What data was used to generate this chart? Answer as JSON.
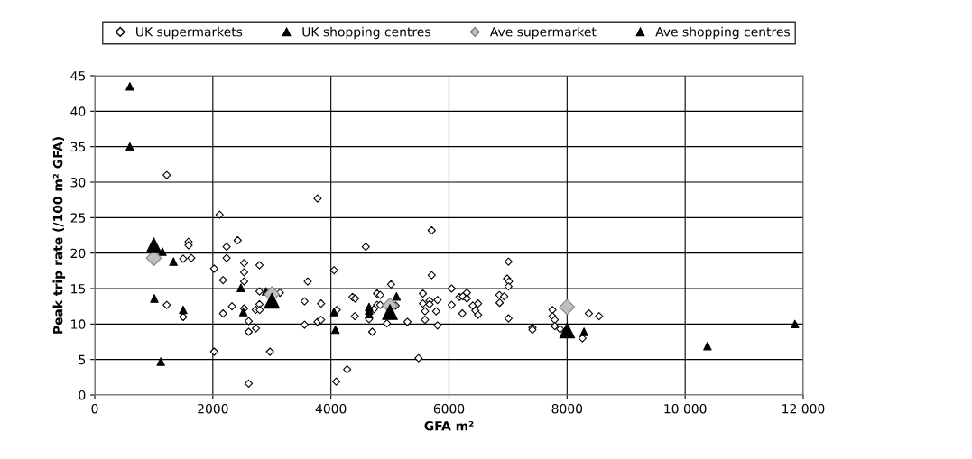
{
  "chart_data": {
    "type": "scatter",
    "xlabel": "GFA m²",
    "ylabel": "Peak trip rate (/100 m² GFA)",
    "xlim": [
      0,
      12000
    ],
    "xticks": [
      0,
      2000,
      4000,
      6000,
      8000,
      {
        "value": 10000,
        "label": "10 000"
      },
      {
        "value": 12000,
        "label": "12 000"
      }
    ],
    "ylim": [
      0,
      45
    ],
    "yticks": [
      0,
      5,
      10,
      15,
      20,
      25,
      30,
      35,
      40,
      45
    ],
    "grid": true,
    "legend": "top",
    "series": [
      {
        "name": "UK supermarkets",
        "color": "#ffffff",
        "marker": "diamond",
        "x": [
          1219,
          2114,
          1589,
          1589,
          1498,
          1635,
          2233,
          2233,
          2420,
          2023,
          2173,
          2530,
          2530,
          2530,
          2790,
          2790,
          3137,
          1219,
          1498,
          2173,
          2324,
          2530,
          2790,
          2726,
          2794,
          2607,
          2730,
          2607,
          2023,
          2968,
          2607,
          3774,
          3607,
          3553,
          3553,
          3774,
          3833,
          3833,
          4054,
          4099,
          4090,
          4275,
          4366,
          4411,
          4406,
          4591,
          4646,
          4700,
          4781,
          4835,
          4781,
          4835,
          4727,
          4948,
          5020,
          5097,
          5296,
          5485,
          5558,
          5558,
          5594,
          5594,
          5671,
          5671,
          5707,
          5707,
          5783,
          5806,
          5806,
          6045,
          6045,
          6176,
          6235,
          6303,
          6303,
          6226,
          6402,
          6447,
          6492,
          6492,
          7007,
          6984,
          7016,
          7007,
          6853,
          6935,
          6858,
          7007,
          7413,
          7413,
          7752,
          7752,
          7791,
          7791,
          7883,
          8369,
          8542,
          8260
        ],
        "values": [
          31.0,
          25.4,
          21.6,
          21.1,
          19.2,
          19.3,
          20.9,
          19.3,
          21.8,
          17.8,
          16.2,
          18.6,
          17.3,
          16.0,
          18.3,
          14.6,
          14.4,
          12.7,
          11.0,
          11.5,
          12.5,
          12.2,
          12.8,
          12.0,
          12.0,
          10.4,
          9.4,
          8.9,
          6.1,
          6.1,
          1.6,
          27.7,
          16.0,
          13.2,
          9.9,
          10.3,
          10.6,
          12.9,
          17.6,
          12.0,
          1.9,
          3.6,
          13.8,
          13.6,
          11.1,
          20.9,
          10.7,
          8.9,
          14.3,
          14.1,
          12.7,
          12.7,
          12.1,
          10.1,
          15.6,
          12.6,
          10.3,
          5.2,
          14.3,
          12.9,
          11.8,
          10.6,
          13.3,
          12.8,
          23.2,
          16.9,
          11.8,
          13.4,
          9.8,
          15.0,
          12.7,
          13.8,
          13.9,
          14.4,
          13.6,
          11.5,
          12.6,
          11.9,
          12.9,
          11.3,
          18.8,
          16.4,
          16.0,
          15.3,
          14.1,
          13.9,
          13.0,
          10.8,
          9.5,
          9.2,
          12.0,
          11.1,
          10.6,
          9.7,
          9.3,
          11.5,
          11.1,
          8.0
        ]
      },
      {
        "name": "UK shopping centres",
        "color": "#000000",
        "marker": "triangle",
        "x": [
          594,
          594,
          1146,
          1333,
          1009,
          1498,
          1119,
          2475,
          2516,
          2900,
          3100,
          4054,
          4077,
          4646,
          4646,
          4646,
          5111,
          8287,
          10378,
          11859
        ],
        "values": [
          43.5,
          35.0,
          20.2,
          18.8,
          13.6,
          12.0,
          4.7,
          15.1,
          11.7,
          14.6,
          null,
          11.7,
          9.2,
          12.4,
          11.9,
          11.4,
          13.9,
          8.9,
          6.9,
          10.0
        ]
      },
      {
        "name": "Ave supermarket",
        "color": "#c0c0c0",
        "marker": "diamond",
        "x": [
          1000,
          3000,
          5000,
          8000
        ],
        "values": [
          19.3,
          14.2,
          12.6,
          12.4
        ]
      },
      {
        "name": "Ave shopping centres",
        "color": "#000000",
        "marker": "triangle",
        "x": [
          1000,
          3000,
          5000,
          8000
        ],
        "values": [
          21.1,
          13.3,
          11.7,
          9.1
        ]
      }
    ]
  }
}
